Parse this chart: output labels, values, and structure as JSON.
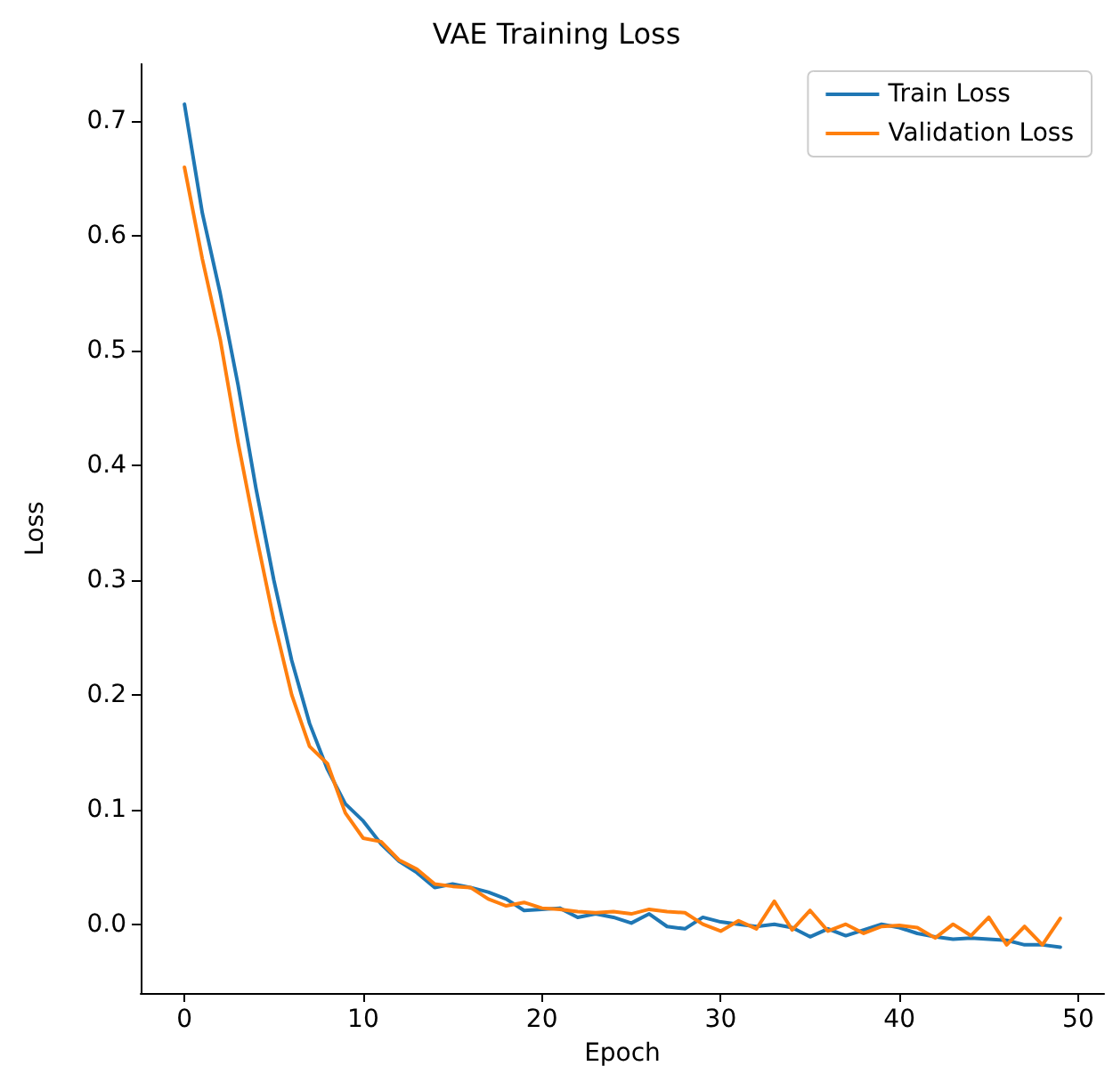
{
  "chart_data": {
    "type": "line",
    "title": "VAE Training Loss",
    "xlabel": "Epoch",
    "ylabel": "Loss",
    "x": [
      0,
      1,
      2,
      3,
      4,
      5,
      6,
      7,
      8,
      9,
      10,
      11,
      12,
      13,
      14,
      15,
      16,
      17,
      18,
      19,
      20,
      21,
      22,
      23,
      24,
      25,
      26,
      27,
      28,
      29,
      30,
      31,
      32,
      33,
      34,
      35,
      36,
      37,
      38,
      39,
      40,
      41,
      42,
      43,
      44,
      45,
      46,
      47,
      48,
      49
    ],
    "series": [
      {
        "name": "Train Loss",
        "color": "#1f77b4",
        "values": [
          0.715,
          0.62,
          0.55,
          0.47,
          0.38,
          0.3,
          0.23,
          0.175,
          0.135,
          0.105,
          0.09,
          0.07,
          0.055,
          0.045,
          0.032,
          0.035,
          0.032,
          0.028,
          0.022,
          0.012,
          0.013,
          0.014,
          0.006,
          0.009,
          0.006,
          0.001,
          0.009,
          -0.002,
          -0.004,
          0.006,
          0.002,
          0.0,
          -0.002,
          0.0,
          -0.003,
          -0.011,
          -0.004,
          -0.01,
          -0.005,
          0.0,
          -0.003,
          -0.008,
          -0.011,
          -0.013,
          -0.012,
          -0.013,
          -0.014,
          -0.018,
          -0.018,
          -0.02
        ]
      },
      {
        "name": "Validation Loss",
        "color": "#ff7f0e",
        "values": [
          0.66,
          0.58,
          0.51,
          0.42,
          0.34,
          0.265,
          0.2,
          0.155,
          0.14,
          0.097,
          0.075,
          0.072,
          0.056,
          0.048,
          0.035,
          0.033,
          0.032,
          0.022,
          0.016,
          0.019,
          0.014,
          0.013,
          0.011,
          0.01,
          0.011,
          0.009,
          0.013,
          0.011,
          0.01,
          0.0,
          -0.006,
          0.003,
          -0.004,
          0.02,
          -0.005,
          0.012,
          -0.006,
          0.0,
          -0.008,
          -0.002,
          -0.001,
          -0.003,
          -0.012,
          0.0,
          -0.01,
          0.006,
          -0.018,
          -0.002,
          -0.018,
          0.005
        ]
      }
    ],
    "xlim": [
      -2.45,
      51.45
    ],
    "ylim": [
      -0.06,
      0.75
    ],
    "xticks": [
      0,
      10,
      20,
      30,
      40,
      50
    ],
    "yticks": [
      {
        "value": 0,
        "label": "0.0"
      },
      0.1,
      0.2,
      0.3,
      0.4,
      0.5,
      0.6,
      0.7
    ],
    "grid": false,
    "legend": "top right",
    "marker": "none",
    "line_style": "solid"
  }
}
